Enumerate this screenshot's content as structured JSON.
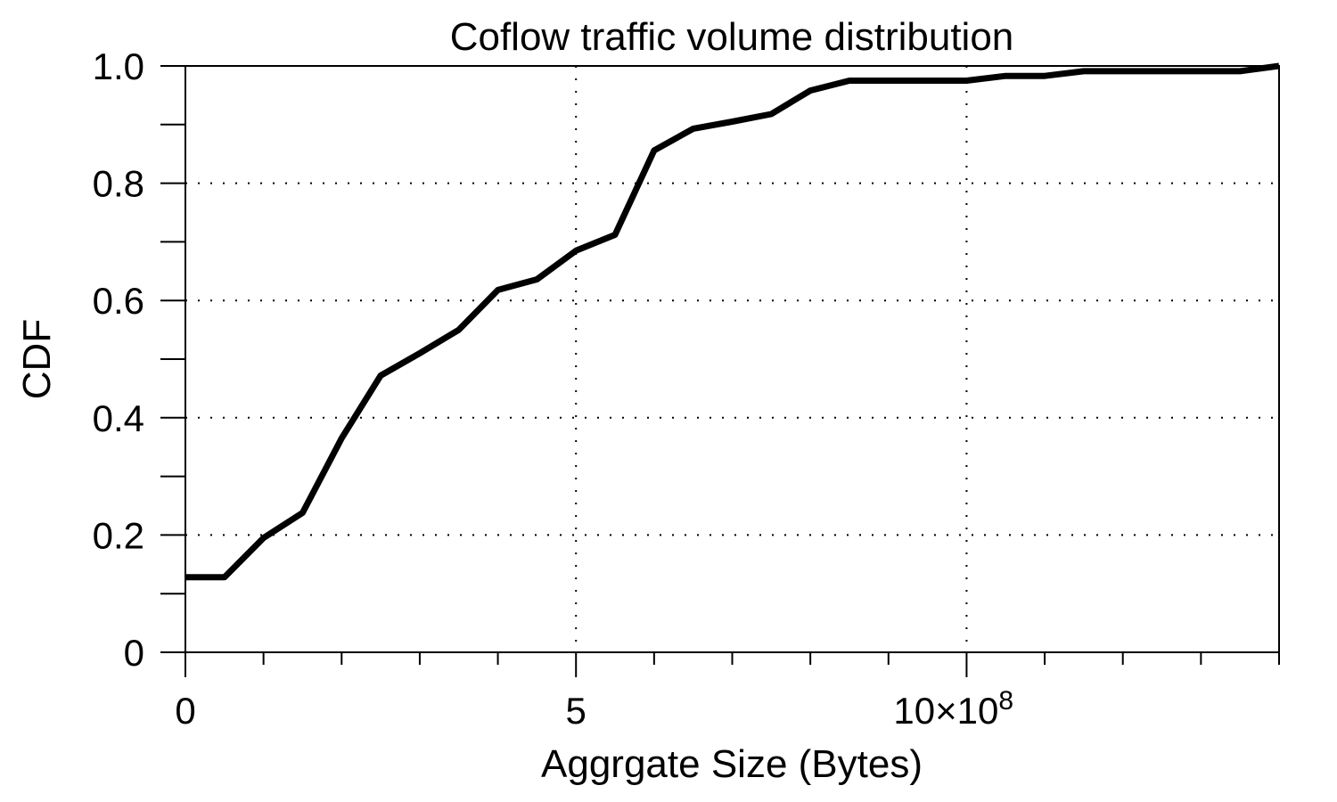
{
  "chart_data": {
    "type": "line",
    "title": "Coflow traffic volume distribution",
    "xlabel": "Aggrgate Size (Bytes)",
    "ylabel": "CDF",
    "xlim": [
      0,
      14
    ],
    "ylim": [
      0,
      1.0
    ],
    "x_scale_note": "×10^8",
    "x_ticks": [
      {
        "value": 0,
        "label": "0"
      },
      {
        "value": 5,
        "label": "5"
      },
      {
        "value": 10,
        "label": "10×10",
        "superscript": "8"
      }
    ],
    "x_minor_ticks": [
      1,
      2,
      3,
      4,
      6,
      7,
      8,
      9,
      11,
      12,
      13
    ],
    "y_ticks": [
      {
        "value": 0,
        "label": "0"
      },
      {
        "value": 0.2,
        "label": "0.2"
      },
      {
        "value": 0.4,
        "label": "0.4"
      },
      {
        "value": 0.6,
        "label": "0.6"
      },
      {
        "value": 0.8,
        "label": "0.8"
      },
      {
        "value": 1.0,
        "label": "1.0"
      }
    ],
    "y_minor_ticks": [
      0.1,
      0.3,
      0.5,
      0.7,
      0.9
    ],
    "grid": true,
    "series": [
      {
        "color": "#000000",
        "x": [
          0,
          0.5,
          1.0,
          1.5,
          2.0,
          2.5,
          3.0,
          3.5,
          4.0,
          4.5,
          5.0,
          5.5,
          6.0,
          6.5,
          7.0,
          7.5,
          8.0,
          8.5,
          9.0,
          9.5,
          10.0,
          10.5,
          11.0,
          11.5,
          12.0,
          12.5,
          13.0,
          13.5,
          14.0
        ],
        "y": [
          0.128,
          0.128,
          0.195,
          0.238,
          0.365,
          0.472,
          0.51,
          0.55,
          0.618,
          0.636,
          0.685,
          0.712,
          0.856,
          0.893,
          0.905,
          0.918,
          0.958,
          0.975,
          0.975,
          0.975,
          0.975,
          0.983,
          0.983,
          0.991,
          0.991,
          0.991,
          0.991,
          0.991,
          1.0
        ]
      }
    ]
  }
}
